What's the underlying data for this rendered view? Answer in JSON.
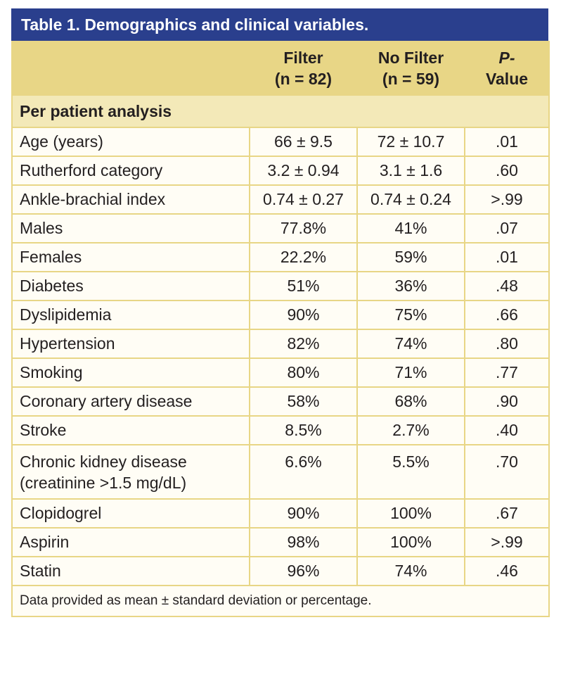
{
  "table": {
    "title": "Table 1. Demographics and clinical variables.",
    "header": [
      [
        "Filter",
        "(n = 82)"
      ],
      [
        "No Filter",
        "(n = 59)"
      ],
      [
        "P-",
        "Value"
      ]
    ],
    "section": "Per patient analysis",
    "rows": [
      [
        [
          "Age (years)"
        ],
        "66 ± 9.5",
        "72 ± 10.7",
        ".01"
      ],
      [
        [
          "Rutherford category"
        ],
        "3.2 ± 0.94",
        "3.1 ± 1.6",
        ".60"
      ],
      [
        [
          "Ankle-brachial index"
        ],
        "0.74 ± 0.27",
        "0.74 ± 0.24",
        ">.99"
      ],
      [
        [
          "Males"
        ],
        "77.8%",
        "41%",
        ".07"
      ],
      [
        [
          "Females"
        ],
        "22.2%",
        "59%",
        ".01"
      ],
      [
        [
          "Diabetes"
        ],
        "51%",
        "36%",
        ".48"
      ],
      [
        [
          "Dyslipidemia"
        ],
        "90%",
        "75%",
        ".66"
      ],
      [
        [
          "Hypertension"
        ],
        "82%",
        "74%",
        ".80"
      ],
      [
        [
          "Smoking"
        ],
        "80%",
        "71%",
        ".77"
      ],
      [
        [
          "Coronary artery disease"
        ],
        "58%",
        "68%",
        ".90"
      ],
      [
        [
          "Stroke"
        ],
        "8.5%",
        "2.7%",
        ".40"
      ],
      [
        [
          "Chronic kidney disease",
          "(creatinine >1.5 mg/dL)"
        ],
        "6.6%",
        "5.5%",
        ".70"
      ],
      [
        [
          "Clopidogrel"
        ],
        "90%",
        "100%",
        ".67"
      ],
      [
        [
          "Aspirin"
        ],
        "98%",
        "100%",
        ">.99"
      ],
      [
        [
          "Statin"
        ],
        "96%",
        "74%",
        ".46"
      ]
    ],
    "footnote": "Data provided as mean ± standard deviation or percentage."
  }
}
